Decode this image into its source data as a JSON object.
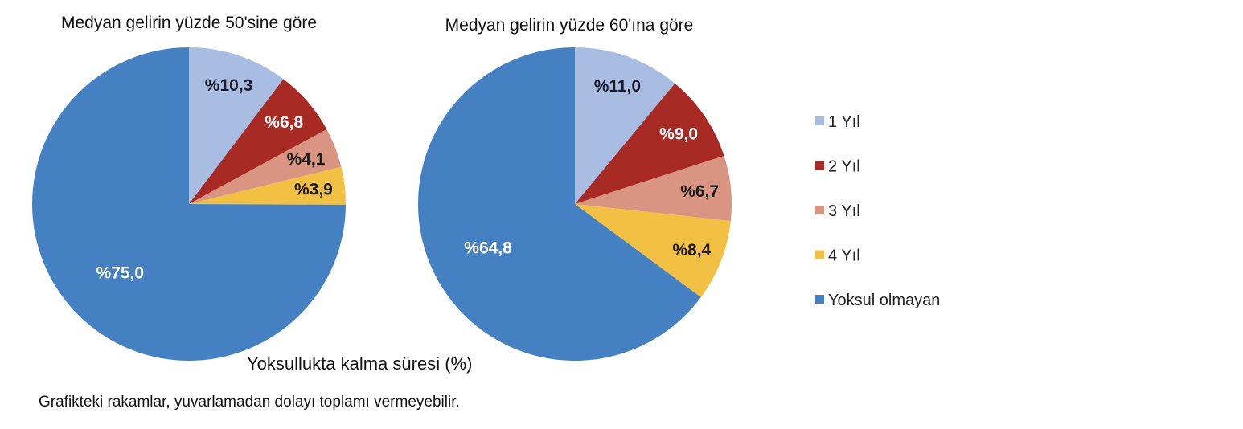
{
  "chart_data": [
    {
      "type": "pie",
      "title": "Medyan gelirin yüzde 50'sine göre",
      "categories": [
        "1  Yıl",
        "2  Yıl",
        "3  Yıl",
        "4  Yıl",
        "Yoksul olmayan"
      ],
      "values": [
        10.3,
        6.8,
        4.1,
        3.9,
        75.0
      ],
      "labels": [
        "%10,3",
        "%6,8",
        "%4,1",
        "%3,9",
        "%75,0"
      ]
    },
    {
      "type": "pie",
      "title": "Medyan gelirin yüzde 60'ına göre",
      "categories": [
        "1  Yıl",
        "2  Yıl",
        "3  Yıl",
        "4  Yıl",
        "Yoksul olmayan"
      ],
      "values": [
        11.0,
        9.0,
        6.7,
        8.4,
        64.8
      ],
      "labels": [
        "%11,0",
        "%9,0",
        "%6,7",
        "%8,4",
        "%64,8"
      ]
    }
  ],
  "legend": {
    "position": "right",
    "items": [
      "1  Yıl",
      "2  Yıl",
      "3  Yıl",
      "4  Yıl",
      "Yoksul olmayan"
    ]
  },
  "colors": [
    "#a9bde2",
    "#a82a25",
    "#d99482",
    "#f2c042",
    "#4581c2"
  ],
  "label_colors": [
    "#1a1a2a",
    "#ffffff",
    "#1a1a1a",
    "#1a1a1a",
    "#ffffff"
  ],
  "axis_title": "Yoksullukta kalma süresi (%)",
  "footnote": "Grafikteki rakamlar, yuvarlamadan dolayı toplamı vermeyebilir."
}
